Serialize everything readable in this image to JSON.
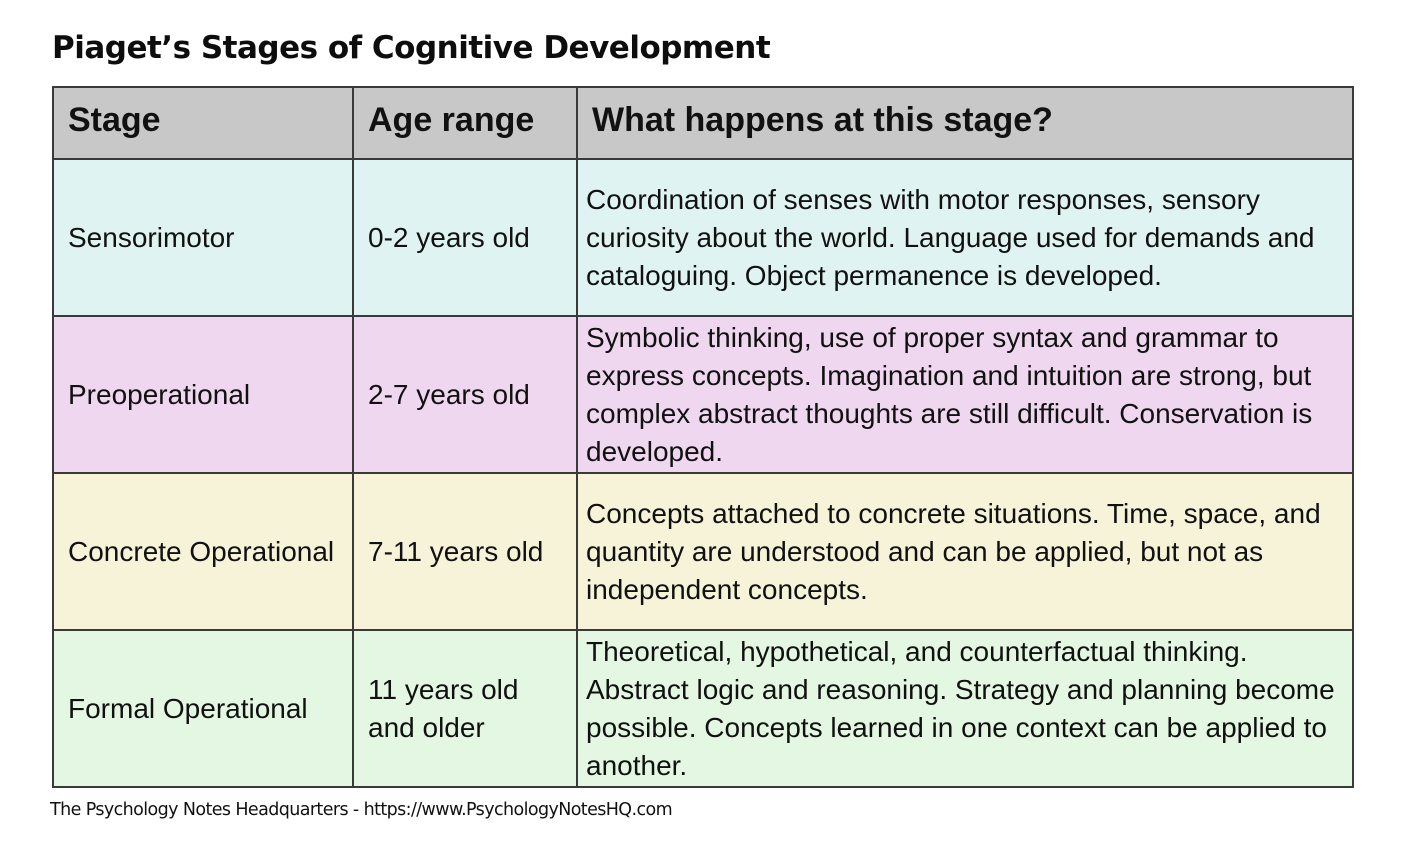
{
  "title": "Piaget’s Stages of Cognitive Development",
  "table": {
    "headers": {
      "stage": "Stage",
      "age": "Age range",
      "description": "What happens at this stage?"
    },
    "rows": [
      {
        "stage": "Sensorimotor",
        "age": "0-2 years old",
        "description": "Coordination of senses with motor responses, sensory curiosity about the world. Language used for demands and cataloguing. Object permanence is developed.",
        "color": "#dff4f2"
      },
      {
        "stage": "Preoperational",
        "age": "2-7 years old",
        "description": "Symbolic thinking, use of proper syntax and grammar to express concepts. Imagination and intuition are strong, but complex abstract thoughts are still difficult. Conservation is developed.",
        "color": "#efd7f0"
      },
      {
        "stage": "Concrete Operational",
        "age": "7-11 years old",
        "description": "Concepts attached to concrete situations. Time, space, and quantity are understood and can be applied, but not as independent concepts.",
        "color": "#f6f3d8"
      },
      {
        "stage": "Formal Operational",
        "age": "11 years old and older",
        "description": "Theoretical, hypothetical, and counterfactual thinking. Abstract logic and reasoning. Strategy and planning become possible. Concepts learned in one context can be applied to another.",
        "color": "#e4f7e2"
      }
    ],
    "header_color": "#c8c8c8"
  },
  "credit": "The Psychology Notes Headquarters - https://www.PsychologyNotesHQ.com"
}
